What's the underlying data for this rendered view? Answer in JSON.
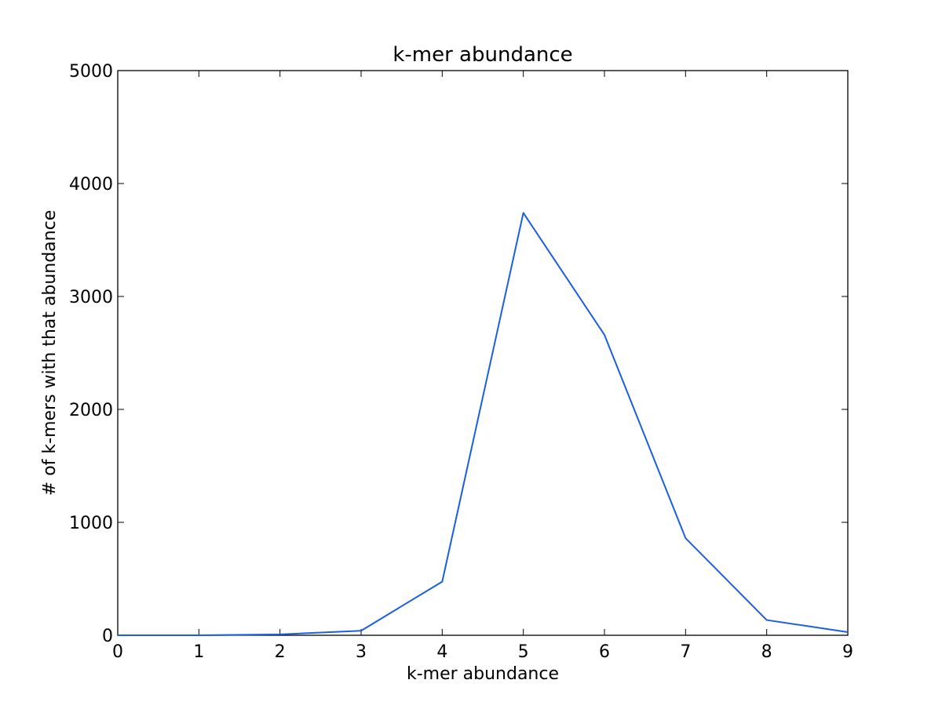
{
  "chart_data": {
    "type": "line",
    "title": "k-mer abundance",
    "xlabel": "k-mer abundance",
    "ylabel": "# of k-mers with that abundance",
    "xlim": [
      0,
      9
    ],
    "ylim": [
      0,
      5000
    ],
    "xticks": [
      0,
      1,
      2,
      3,
      4,
      5,
      6,
      7,
      8,
      9
    ],
    "yticks": [
      0,
      1000,
      2000,
      3000,
      4000,
      5000
    ],
    "grid": false,
    "series": [
      {
        "color": "#1a5fe0",
        "x": [
          0,
          1,
          2,
          3,
          4,
          5,
          6,
          7,
          8,
          9
        ],
        "y": [
          0,
          0,
          8,
          40,
          475,
          3740,
          2660,
          860,
          135,
          28
        ]
      }
    ]
  }
}
